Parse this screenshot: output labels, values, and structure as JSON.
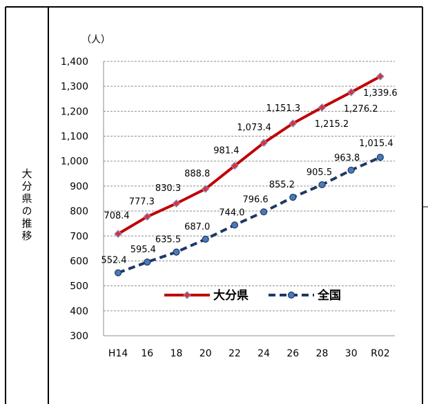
{
  "row_label": "大分県の推移",
  "chart_data": {
    "type": "line",
    "unit_label": "（人）",
    "categories": [
      "H14",
      "16",
      "18",
      "20",
      "22",
      "24",
      "26",
      "28",
      "30",
      "R02"
    ],
    "ylim": [
      300,
      1400
    ],
    "y_ticks": [
      "300",
      "400",
      "500",
      "600",
      "700",
      "800",
      "900",
      "1,000",
      "1,100",
      "1,200",
      "1,300",
      "1,400"
    ],
    "grid": true,
    "legend_position": "center-inside",
    "series": [
      {
        "name": "大分県",
        "style": "solid",
        "color": "#c00000",
        "marker": "diamond",
        "values": [
          708.4,
          777.3,
          830.3,
          888.8,
          981.4,
          1073.4,
          1151.3,
          1215.2,
          1276.2,
          1339.6
        ],
        "labels": [
          "708.4",
          "777.3",
          "830.3",
          "888.8",
          "981.4",
          "1,073.4",
          "1,151.3",
          "1,215.2",
          "1,276.2",
          "1,339.6"
        ]
      },
      {
        "name": "全国",
        "style": "dashed",
        "color": "#1f3864",
        "marker": "circle",
        "values": [
          552.4,
          595.4,
          635.5,
          687.0,
          744.0,
          796.6,
          855.2,
          905.5,
          963.8,
          1015.4
        ],
        "labels": [
          "552.4",
          "595.4",
          "635.5",
          "687.0",
          "744.0",
          "796.6",
          "855.2",
          "905.5",
          "963.8",
          "1,015.4"
        ]
      }
    ]
  }
}
